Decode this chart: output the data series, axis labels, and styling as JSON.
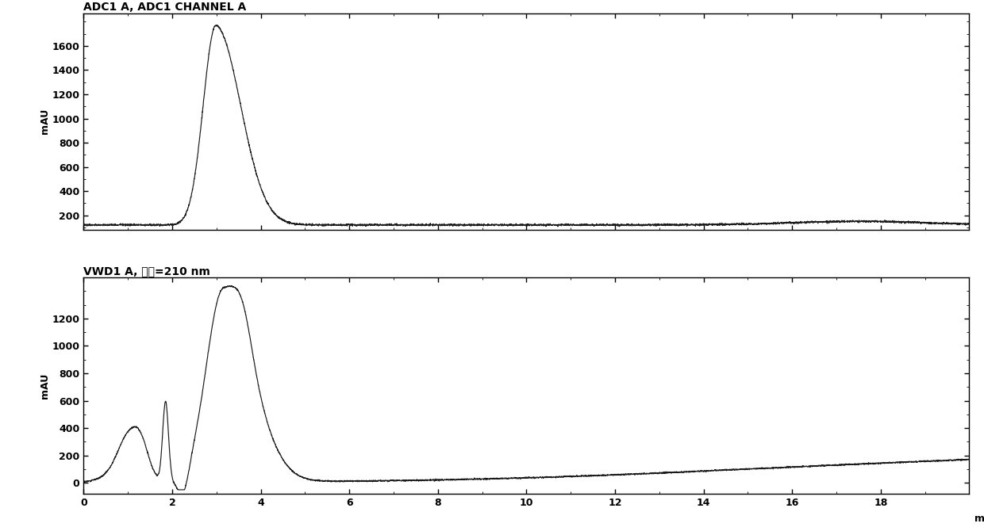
{
  "title1": "ADC1 A, ADC1 CHANNEL A",
  "title2": "VWD1 A, 波长=210 nm",
  "ylabel": "mAU",
  "xlabel": "min",
  "xmin": 0,
  "xmax": 20,
  "plot1_yticks": [
    200,
    400,
    600,
    800,
    1000,
    1200,
    1400,
    1600
  ],
  "plot2_yticks": [
    0,
    200,
    400,
    600,
    800,
    1000,
    1200
  ],
  "xticks": [
    0,
    2,
    4,
    6,
    8,
    10,
    12,
    14,
    16,
    18
  ],
  "line_color": "#1a1a1a",
  "bg_color": "#ffffff",
  "title_fontsize": 10,
  "label_fontsize": 9,
  "tick_fontsize": 9
}
